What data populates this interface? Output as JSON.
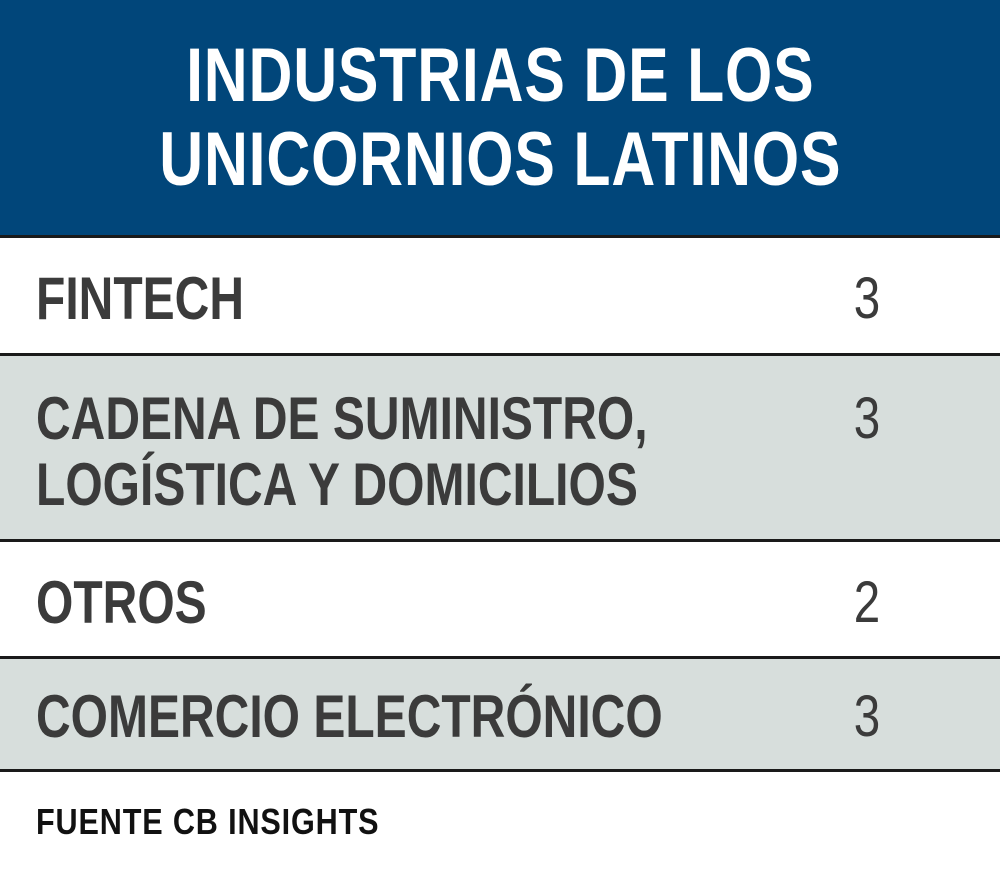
{
  "header": {
    "title_line1": "INDUSTRIAS DE LOS",
    "title_line2": "UNICORNIOS LATINOS"
  },
  "colors": {
    "header_bg": "#01467a",
    "header_text": "#ffffff",
    "row_alt_bg": "#d7dedc",
    "row_text": "#3b3b3b",
    "rule": "#1a1a1a"
  },
  "chart_data": {
    "type": "table",
    "title": "INDUSTRIAS DE LOS UNICORNIOS LATINOS",
    "rows": [
      {
        "label": "FINTECH",
        "value": 3
      },
      {
        "label": "CADENA DE SUMINISTRO, LOGÍSTICA Y DOMICILIOS",
        "value": 3
      },
      {
        "label": "OTROS",
        "value": 2
      },
      {
        "label": "COMERCIO ELECTRÓNICO",
        "value": 3
      }
    ],
    "source": "FUENTE CB INSIGHTS"
  },
  "table": {
    "row1": {
      "label": "FINTECH",
      "value": "3"
    },
    "row2": {
      "label_line1": "CADENA DE SUMINISTRO,",
      "label_line2": "LOGÍSTICA Y DOMICILIOS",
      "value": "3"
    },
    "row3": {
      "label": "OTROS",
      "value": "2"
    },
    "row4": {
      "label": "COMERCIO ELECTRÓNICO",
      "value": "3"
    }
  },
  "footer": {
    "source": "FUENTE CB INSIGHTS"
  }
}
